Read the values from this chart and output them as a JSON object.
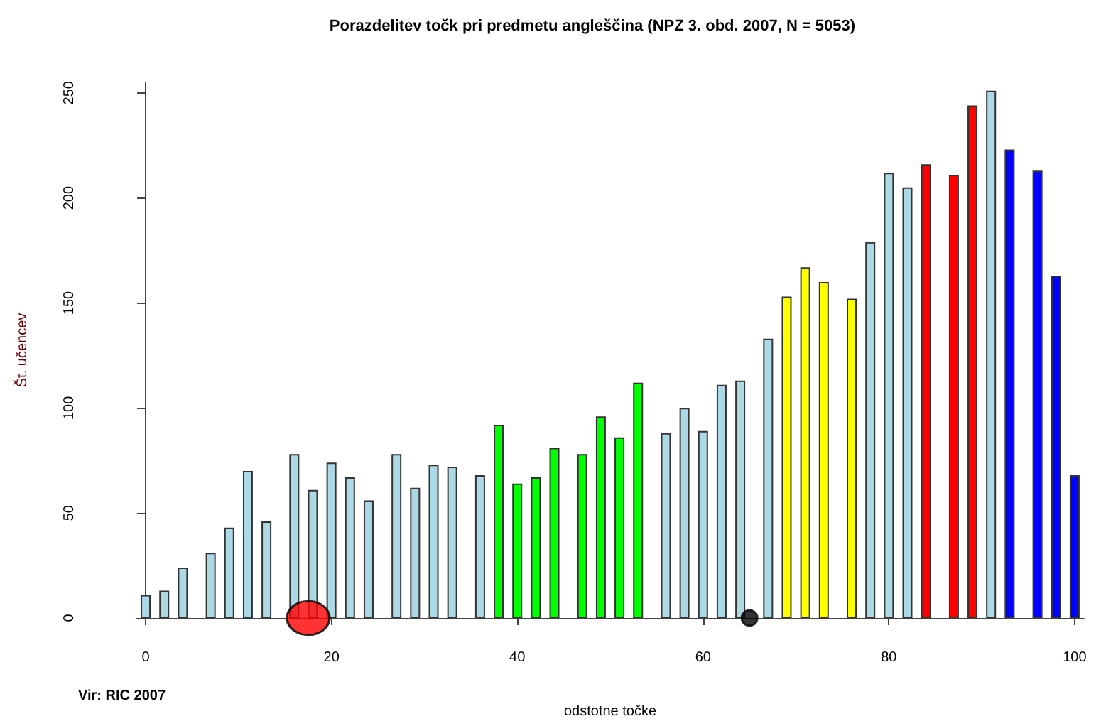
{
  "chart_data": {
    "type": "bar",
    "title": "Porazdelitev točk pri predmetu angleščina (NPZ 3. obd. 2007, N = 5053)",
    "xlabel": "odstotne točke",
    "ylabel": "Št. učencev",
    "annotations": [
      "Vir: RIC 2007"
    ],
    "x": [
      0,
      2,
      4,
      7,
      9,
      11,
      13,
      16,
      18,
      20,
      22,
      24,
      27,
      29,
      31,
      33,
      36,
      38,
      40,
      42,
      44,
      47,
      49,
      51,
      53,
      56,
      58,
      60,
      62,
      64,
      67,
      69,
      71,
      73,
      76,
      78,
      80,
      82,
      84,
      87,
      89,
      91,
      93,
      96,
      98,
      100
    ],
    "series": [
      {
        "type": "bar",
        "values": [
          11,
          13,
          24,
          31,
          43,
          70,
          46,
          78,
          61,
          74,
          67,
          56,
          78,
          62,
          73,
          72,
          68,
          92,
          64,
          67,
          81,
          78,
          96,
          86,
          112,
          88,
          100,
          89,
          111,
          113,
          133,
          153,
          167,
          160,
          152,
          179,
          212,
          205,
          216,
          211,
          244,
          251,
          223,
          213,
          163,
          68
        ],
        "colors": [
          "#add8e6",
          "#add8e6",
          "#add8e6",
          "#add8e6",
          "#add8e6",
          "#add8e6",
          "#add8e6",
          "#add8e6",
          "#add8e6",
          "#add8e6",
          "#add8e6",
          "#add8e6",
          "#add8e6",
          "#add8e6",
          "#add8e6",
          "#add8e6",
          "#add8e6",
          "#00ff00",
          "#00ff00",
          "#00ff00",
          "#00ff00",
          "#00ff00",
          "#00ff00",
          "#00ff00",
          "#00ff00",
          "#add8e6",
          "#add8e6",
          "#add8e6",
          "#add8e6",
          "#add8e6",
          "#add8e6",
          "#ffff00",
          "#ffff00",
          "#ffff00",
          "#ffff00",
          "#add8e6",
          "#add8e6",
          "#add8e6",
          "#ff0000",
          "#ff0000",
          "#ff0000",
          "#add8e6",
          "#0000ff",
          "#0000ff",
          "#0000ff",
          "#0000ff"
        ]
      },
      {
        "type": "scatter",
        "x": [
          17.5
        ],
        "values": [
          0
        ],
        "color": "#ff0000"
      },
      {
        "type": "scatter",
        "x": [
          65
        ],
        "values": [
          0
        ],
        "color": "#000000"
      }
    ],
    "xlim": [
      -1,
      101
    ],
    "xticks": [
      0,
      20,
      40,
      60,
      80,
      100
    ],
    "ylim": [
      0,
      255
    ],
    "yticks": [
      0,
      50,
      100,
      150,
      200,
      250
    ],
    "marker": "circle"
  }
}
